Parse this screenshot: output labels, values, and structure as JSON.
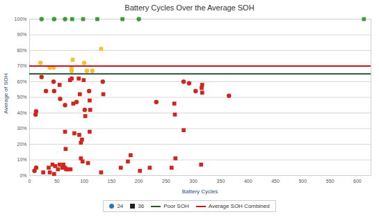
{
  "chart_data": {
    "type": "scatter",
    "title": "Battery Cycles Over the Average SOH",
    "x_label": "Battery Cycles",
    "y_label": "Average of SOH",
    "xlim": [
      0,
      625
    ],
    "xticks": [
      0,
      50,
      100,
      150,
      200,
      250,
      300,
      350,
      400,
      450,
      500,
      550,
      600
    ],
    "ylim": [
      0,
      100
    ],
    "yticks": [
      {
        "value": 0,
        "label": "0%"
      },
      {
        "value": 10,
        "label": "10%"
      },
      {
        "value": 20,
        "label": "20%"
      },
      {
        "value": 30,
        "label": "30%"
      },
      {
        "value": 40,
        "label": "40%"
      },
      {
        "value": 50,
        "label": "50%"
      },
      {
        "value": 60,
        "label": "60%"
      },
      {
        "value": 70,
        "label": "70%"
      },
      {
        "value": 80,
        "label": "80%"
      },
      {
        "value": 90,
        "label": "90%"
      },
      {
        "value": 100,
        "label": "100%"
      }
    ],
    "grid": true,
    "legend": "bottom",
    "series": [
      {
        "name": "24",
        "marker": "circle",
        "color": "#2e75b6",
        "x": [
          22,
          45,
          65,
          200,
          20,
          37,
          44,
          77,
          100,
          105,
          115,
          11,
          12,
          22,
          30,
          9,
          12,
          44,
          45,
          56,
          65,
          77,
          86,
          101,
          109,
          134,
          232,
          282,
          292,
          304,
          365
        ],
        "values": [
          100,
          100,
          100,
          100,
          72,
          69,
          69,
          67,
          72,
          67,
          67,
          39,
          41,
          63,
          54,
          3,
          5,
          60,
          54,
          49,
          45,
          62,
          47,
          42,
          54,
          60,
          47,
          60,
          59,
          54,
          51
        ],
        "colors": [
          "#3a9c3a",
          "#3a9c3a",
          "#3a9c3a",
          "#3a9c3a",
          "#f2c037",
          "#f2c037",
          "#f2c037",
          "#f2c037",
          "#f2c037",
          "#f2c037",
          "#f2c037",
          "#d0261d",
          "#d0261d",
          "#d0261d",
          "#d0261d",
          "#d0261d",
          "#d0261d",
          "#d0261d",
          "#d0261d",
          "#d0261d",
          "#d0261d",
          "#d0261d",
          "#d0261d",
          "#d0261d",
          "#d0261d",
          "#d0261d",
          "#d0261d",
          "#d0261d",
          "#d0261d",
          "#d0261d",
          "#d0261d"
        ]
      },
      {
        "name": "36",
        "marker": "square",
        "color": "#222222",
        "x": [
          78,
          98,
          124,
          170,
          612,
          77,
          79,
          131,
          25,
          35,
          37,
          42,
          45,
          47,
          52,
          55,
          60,
          62,
          65,
          67,
          70,
          75,
          55,
          65,
          66,
          74,
          80,
          82,
          90,
          91,
          92,
          94,
          94,
          96,
          97,
          99,
          102,
          107,
          110,
          110,
          111,
          135,
          131,
          167,
          180,
          185,
          202,
          220,
          260,
          265,
          266,
          267,
          282,
          316,
          315,
          316,
          314
        ],
        "values": [
          100,
          100,
          100,
          100,
          100,
          69,
          74,
          81,
          2,
          5,
          2,
          7,
          1,
          6,
          4,
          7,
          5,
          7,
          5,
          4,
          4,
          4,
          58,
          28,
          17,
          61,
          46,
          27,
          62,
          26,
          52,
          21,
          11,
          23,
          9,
          61,
          38,
          8,
          48,
          28,
          42,
          52,
          2,
          5,
          9,
          13,
          3,
          5,
          5,
          46,
          39,
          11,
          29,
          58,
          56,
          53,
          7
        ],
        "colors": [
          "#3a9c3a",
          "#3a9c3a",
          "#3a9c3a",
          "#3a9c3a",
          "#3a9c3a",
          "#f2c037",
          "#f2c037",
          "#f2c037",
          "#d0261d",
          "#d0261d",
          "#d0261d",
          "#d0261d",
          "#d0261d",
          "#d0261d",
          "#d0261d",
          "#d0261d",
          "#d0261d",
          "#d0261d",
          "#d0261d",
          "#d0261d",
          "#d0261d",
          "#d0261d",
          "#d0261d",
          "#d0261d",
          "#d0261d",
          "#d0261d",
          "#d0261d",
          "#d0261d",
          "#d0261d",
          "#d0261d",
          "#d0261d",
          "#d0261d",
          "#d0261d",
          "#d0261d",
          "#d0261d",
          "#d0261d",
          "#d0261d",
          "#d0261d",
          "#d0261d",
          "#d0261d",
          "#d0261d",
          "#d0261d",
          "#d0261d",
          "#d0261d",
          "#d0261d",
          "#d0261d",
          "#d0261d",
          "#d0261d",
          "#d0261d",
          "#d0261d",
          "#d0261d",
          "#d0261d",
          "#d0261d",
          "#d0261d",
          "#d0261d",
          "#d0261d",
          "#d0261d"
        ]
      },
      {
        "name": "Poor SOH",
        "type": "line",
        "color": "#2f4f2f",
        "x": [
          0,
          625
        ],
        "values": [
          65,
          65
        ]
      },
      {
        "name": "Average SOH Combined",
        "type": "line",
        "color": "#c0181b",
        "x": [
          0,
          625
        ],
        "values": [
          70,
          70
        ]
      }
    ]
  }
}
